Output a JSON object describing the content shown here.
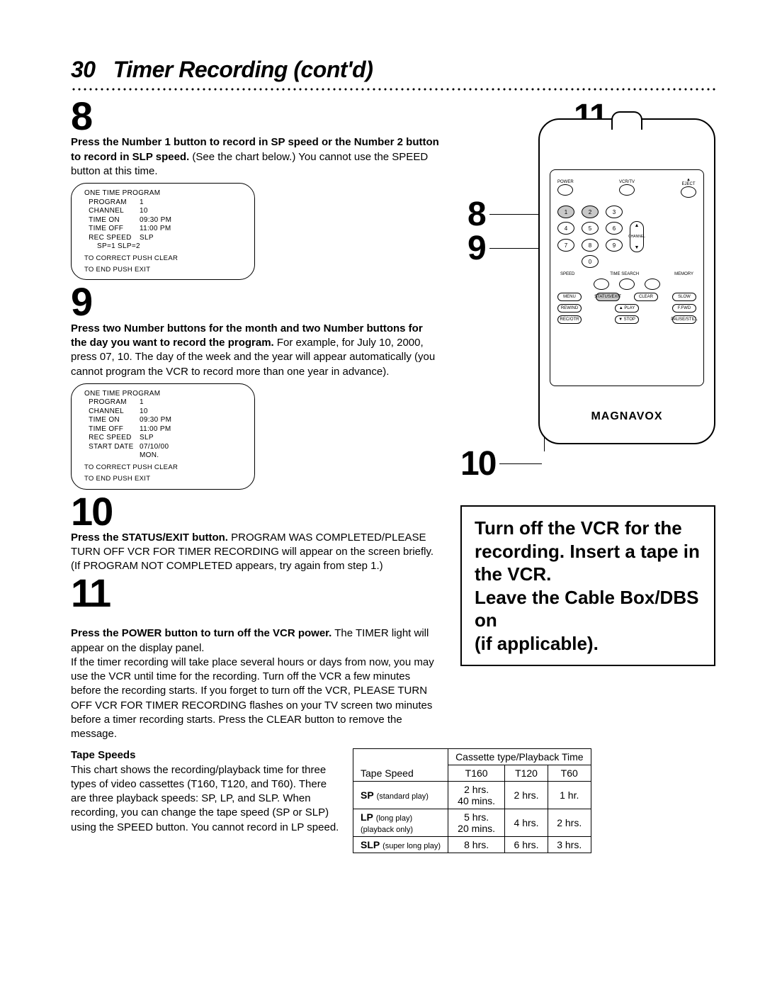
{
  "page": {
    "number": "30",
    "title": "Timer Recording (cont'd)"
  },
  "steps": {
    "s8": {
      "num": "8",
      "bold": "Press the Number 1 button to record in SP speed or the Number 2 button to record in SLP speed.",
      "rest": " (See the chart below.) You cannot use the SPEED button at this time."
    },
    "s9": {
      "num": "9",
      "bold": "Press two Number buttons for the month and two Number buttons for the day you want to record the program.",
      "rest": " For example, for July 10, 2000, press 07, 10. The day of the week and the year will appear automatically (you cannot program the VCR to record more than one year in advance)."
    },
    "s10": {
      "num": "10",
      "bold": "Press the STATUS/EXIT button.",
      "rest": " PROGRAM WAS COMPLETED/PLEASE TURN OFF VCR FOR TIMER RECORDING will appear on the screen briefly. (If PROGRAM NOT COMPLETED appears, try again from step 1.)"
    },
    "s11": {
      "num": "11",
      "bold": "Press the POWER button to turn off the VCR power.",
      "rest": " The TIMER light will appear on the display panel.\nIf the timer recording will take place several hours or days from now, you may use the VCR until time for the recording. Turn off the VCR a few minutes before the recording starts. If you forget to turn off the VCR, PLEASE TURN OFF VCR FOR TIMER RECORDING flashes on your TV screen two minutes before a timer recording starts. Press the CLEAR button to remove the message."
    }
  },
  "osd1": {
    "title": "ONE TIME PROGRAM",
    "rows": [
      [
        "PROGRAM",
        "1"
      ],
      [
        "CHANNEL",
        "10"
      ],
      [
        "TIME ON",
        "09:30 PM"
      ],
      [
        "TIME OFF",
        "11:00 PM"
      ],
      [
        "REC SPEED",
        "SLP"
      ]
    ],
    "note": "SP=1   SLP=2",
    "foot1": "TO CORRECT PUSH CLEAR",
    "foot2": "TO END PUSH EXIT"
  },
  "osd2": {
    "title": "ONE TIME PROGRAM",
    "rows": [
      [
        "PROGRAM",
        "1"
      ],
      [
        "CHANNEL",
        "10"
      ],
      [
        "TIME ON",
        "09:30 PM"
      ],
      [
        "TIME OFF",
        "11:00 PM"
      ],
      [
        "REC SPEED",
        "SLP"
      ],
      [
        "START DATE",
        "07/10/00"
      ],
      [
        "",
        "MON."
      ]
    ],
    "foot1": "TO CORRECT PUSH CLEAR",
    "foot2": "TO END PUSH EXIT"
  },
  "callouts": {
    "c11": "11",
    "c8": "8",
    "c9": "9",
    "c10": "10"
  },
  "remote": {
    "topLabels": [
      "POWER",
      "VCR/TV",
      "▲ EJECT"
    ],
    "nums": [
      "1",
      "2",
      "3",
      "4",
      "5",
      "6",
      "7",
      "8",
      "9",
      "0"
    ],
    "channel": "CHANNEL",
    "midLabels": [
      "SPEED",
      "TIME SEARCH",
      "MEMORY"
    ],
    "row2": [
      "MENU",
      "STATUS/EXIT",
      "CLEAR",
      "SLOW"
    ],
    "row3": [
      "REWIND",
      "▲ PLAY",
      "F.FWD"
    ],
    "row4": [
      "REC/OTR",
      "▼ STOP",
      "PAUSE/STILL"
    ],
    "brand": "MAGNAVOX"
  },
  "bigbox": "Turn off the VCR for the recording. Insert a tape in the VCR.\nLeave the Cable Box/DBS on\n(if applicable).",
  "tapespeeds": {
    "heading": "Tape Speeds",
    "text": "This chart shows the recording/playback time for three types of video cassettes (T160, T120, and T60). There are three playback speeds: SP, LP, and SLP. When recording, you can change the tape speed (SP or SLP) using the SPEED button. You cannot record in LP speed.",
    "colhead": "Cassette type/Playback Time",
    "col0": "Tape Speed",
    "cols": [
      "T160",
      "T120",
      "T60"
    ],
    "rows": [
      {
        "label": "SP",
        "sub": "(standard play)",
        "cells": [
          "2 hrs.\n40 mins.",
          "2 hrs.",
          "1 hr."
        ]
      },
      {
        "label": "LP",
        "sub": "(long play)\n(playback only)",
        "cells": [
          "5 hrs.\n20 mins.",
          "4 hrs.",
          "2 hrs."
        ]
      },
      {
        "label": "SLP",
        "sub": "(super long play)",
        "cells": [
          "8 hrs.",
          "6 hrs.",
          "3 hrs."
        ]
      }
    ]
  }
}
